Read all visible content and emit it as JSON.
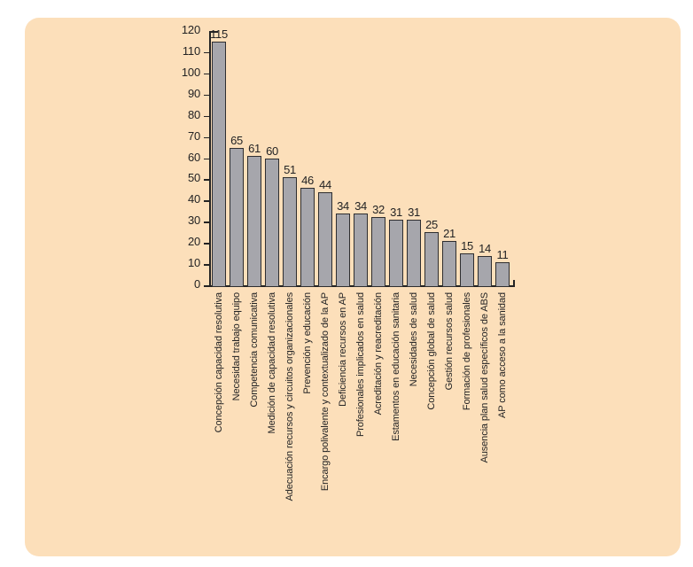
{
  "figure": {
    "page_background": "#ffffff",
    "card_background": "#fcdfba"
  },
  "chart_data": {
    "type": "bar",
    "title": "",
    "xlabel": "",
    "ylabel": "",
    "categories": [
      "Concepción capacidad resolutiva",
      "Necesidad trabajo equipo",
      "Competencia comunicativa",
      "Medición de capacidad resolutiva",
      "Adecuación recursos y circuitos organizacionales",
      "Prevención y educación",
      "Encargo polivalente y contextualizado de la AP",
      "Deficiencia recursos en AP",
      "Profesionales implicados en salud",
      "Acreditación y reacreditación",
      "Estamentos en educación sanitaria",
      "Necesidades de salud",
      "Concepción global de salud",
      "Gestión recursos salud",
      "Formación de profesionales",
      "Ausencia plan salud específicos de ABS",
      "AP como acceso a la sanidad"
    ],
    "values": [
      115,
      65,
      61,
      60,
      51,
      46,
      44,
      34,
      34,
      32,
      31,
      31,
      25,
      21,
      15,
      14,
      11
    ],
    "value_labels_shown": true,
    "ylim": [
      0,
      120
    ],
    "ytick_step": 10,
    "yticks": [
      0,
      10,
      20,
      30,
      40,
      50,
      60,
      70,
      80,
      90,
      100,
      110,
      120
    ],
    "grid": false,
    "legend": null,
    "bar_color": "#a6a6ac",
    "bar_border_color": "#2e2e30",
    "axis_color": "#232324",
    "text_color": "#232324"
  }
}
